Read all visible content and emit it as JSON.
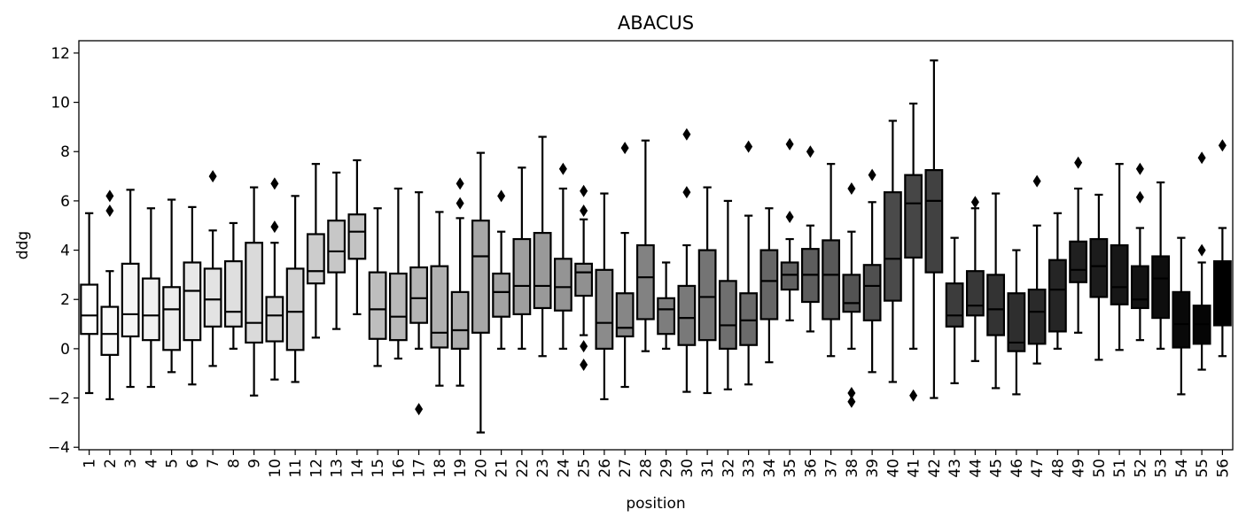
{
  "chart_data": {
    "type": "box",
    "title": "ABACUS",
    "xlabel": "position",
    "ylabel": "ddg",
    "ylim": [
      -4.1,
      12.5
    ],
    "yticks": [
      -4,
      -2,
      0,
      2,
      4,
      6,
      8,
      10,
      12
    ],
    "ytick_labels": [
      "−4",
      "−2",
      "0",
      "2",
      "4",
      "6",
      "8",
      "10",
      "12"
    ],
    "categories": [
      "1",
      "2",
      "3",
      "4",
      "5",
      "6",
      "7",
      "8",
      "9",
      "10",
      "11",
      "12",
      "13",
      "14",
      "15",
      "16",
      "17",
      "18",
      "19",
      "20",
      "21",
      "22",
      "23",
      "24",
      "25",
      "26",
      "27",
      "28",
      "29",
      "30",
      "31",
      "32",
      "33",
      "34",
      "35",
      "36",
      "37",
      "38",
      "39",
      "40",
      "41",
      "42",
      "43",
      "44",
      "45",
      "46",
      "47",
      "48",
      "49",
      "50",
      "51",
      "52",
      "53",
      "54",
      "55",
      "56"
    ],
    "boxes": [
      {
        "wl": -1.8,
        "q1": 0.6,
        "med": 1.35,
        "q3": 2.6,
        "wh": 5.5,
        "out": []
      },
      {
        "wl": -2.05,
        "q1": -0.25,
        "med": 0.6,
        "q3": 1.7,
        "wh": 3.15,
        "out": [
          6.2,
          5.6
        ]
      },
      {
        "wl": -1.55,
        "q1": 0.5,
        "med": 1.4,
        "q3": 3.45,
        "wh": 6.45,
        "out": []
      },
      {
        "wl": -1.55,
        "q1": 0.35,
        "med": 1.35,
        "q3": 2.85,
        "wh": 5.7,
        "out": []
      },
      {
        "wl": -0.95,
        "q1": -0.05,
        "med": 1.6,
        "q3": 2.5,
        "wh": 6.05,
        "out": []
      },
      {
        "wl": -1.45,
        "q1": 0.35,
        "med": 2.35,
        "q3": 3.5,
        "wh": 5.75,
        "out": []
      },
      {
        "wl": -0.7,
        "q1": 0.9,
        "med": 2.0,
        "q3": 3.25,
        "wh": 4.8,
        "out": [
          7.0
        ]
      },
      {
        "wl": 0.0,
        "q1": 0.9,
        "med": 1.5,
        "q3": 3.55,
        "wh": 5.1,
        "out": []
      },
      {
        "wl": -1.9,
        "q1": 0.25,
        "med": 1.05,
        "q3": 4.3,
        "wh": 6.55,
        "out": []
      },
      {
        "wl": -1.25,
        "q1": 0.3,
        "med": 1.35,
        "q3": 2.1,
        "wh": 4.3,
        "out": [
          6.7,
          4.95
        ]
      },
      {
        "wl": -1.35,
        "q1": -0.05,
        "med": 1.5,
        "q3": 3.25,
        "wh": 6.2,
        "out": []
      },
      {
        "wl": 0.45,
        "q1": 2.65,
        "med": 3.15,
        "q3": 4.65,
        "wh": 7.5,
        "out": []
      },
      {
        "wl": 0.8,
        "q1": 3.1,
        "med": 3.95,
        "q3": 5.2,
        "wh": 7.15,
        "out": []
      },
      {
        "wl": 1.4,
        "q1": 3.65,
        "med": 4.75,
        "q3": 5.45,
        "wh": 7.65,
        "out": []
      },
      {
        "wl": -0.7,
        "q1": 0.4,
        "med": 1.6,
        "q3": 3.1,
        "wh": 5.7,
        "out": []
      },
      {
        "wl": -0.4,
        "q1": 0.35,
        "med": 1.3,
        "q3": 3.05,
        "wh": 6.5,
        "out": []
      },
      {
        "wl": 0.0,
        "q1": 1.05,
        "med": 2.05,
        "q3": 3.3,
        "wh": 6.35,
        "out": [
          -2.45
        ]
      },
      {
        "wl": -1.5,
        "q1": 0.05,
        "med": 0.65,
        "q3": 3.35,
        "wh": 5.55,
        "out": []
      },
      {
        "wl": -1.5,
        "q1": 0.0,
        "med": 0.75,
        "q3": 2.3,
        "wh": 5.3,
        "out": [
          6.7,
          5.9
        ]
      },
      {
        "wl": -3.4,
        "q1": 0.65,
        "med": 3.75,
        "q3": 5.2,
        "wh": 7.95,
        "out": []
      },
      {
        "wl": 0.0,
        "q1": 1.3,
        "med": 2.3,
        "q3": 3.05,
        "wh": 4.75,
        "out": [
          6.2
        ]
      },
      {
        "wl": 0.0,
        "q1": 1.4,
        "med": 2.55,
        "q3": 4.45,
        "wh": 7.35,
        "out": []
      },
      {
        "wl": -0.3,
        "q1": 1.65,
        "med": 2.55,
        "q3": 4.7,
        "wh": 8.6,
        "out": []
      },
      {
        "wl": 0.0,
        "q1": 1.55,
        "med": 2.5,
        "q3": 3.65,
        "wh": 6.5,
        "out": [
          7.3
        ]
      },
      {
        "wl": 0.55,
        "q1": 2.15,
        "med": 3.1,
        "q3": 3.45,
        "wh": 5.25,
        "out": [
          6.4,
          5.6,
          0.1,
          -0.65
        ]
      },
      {
        "wl": -2.05,
        "q1": 0.0,
        "med": 1.05,
        "q3": 3.2,
        "wh": 6.3,
        "out": []
      },
      {
        "wl": -1.55,
        "q1": 0.5,
        "med": 0.85,
        "q3": 2.25,
        "wh": 4.7,
        "out": [
          8.15
        ]
      },
      {
        "wl": -0.1,
        "q1": 1.2,
        "med": 2.9,
        "q3": 4.2,
        "wh": 8.45,
        "out": []
      },
      {
        "wl": 0.0,
        "q1": 0.6,
        "med": 1.6,
        "q3": 2.05,
        "wh": 3.5,
        "out": []
      },
      {
        "wl": -1.75,
        "q1": 0.15,
        "med": 1.25,
        "q3": 2.55,
        "wh": 4.2,
        "out": [
          8.7,
          6.35
        ]
      },
      {
        "wl": -1.8,
        "q1": 0.35,
        "med": 2.1,
        "q3": 4.0,
        "wh": 6.55,
        "out": []
      },
      {
        "wl": -1.65,
        "q1": 0.0,
        "med": 0.95,
        "q3": 2.75,
        "wh": 6.0,
        "out": []
      },
      {
        "wl": -1.45,
        "q1": 0.15,
        "med": 1.15,
        "q3": 2.25,
        "wh": 5.4,
        "out": [
          8.2
        ]
      },
      {
        "wl": -0.55,
        "q1": 1.2,
        "med": 2.75,
        "q3": 4.0,
        "wh": 5.7,
        "out": []
      },
      {
        "wl": 1.15,
        "q1": 2.4,
        "med": 3.0,
        "q3": 3.5,
        "wh": 4.45,
        "out": [
          8.3,
          5.35
        ]
      },
      {
        "wl": 0.7,
        "q1": 1.9,
        "med": 3.0,
        "q3": 4.05,
        "wh": 5.0,
        "out": [
          8.0
        ]
      },
      {
        "wl": -0.3,
        "q1": 1.2,
        "med": 3.0,
        "q3": 4.4,
        "wh": 7.5,
        "out": []
      },
      {
        "wl": 0.0,
        "q1": 1.5,
        "med": 1.85,
        "q3": 3.0,
        "wh": 4.75,
        "out": [
          6.5,
          -1.8,
          -2.15
        ]
      },
      {
        "wl": -0.95,
        "q1": 1.15,
        "med": 2.55,
        "q3": 3.4,
        "wh": 5.95,
        "out": [
          7.05
        ]
      },
      {
        "wl": -1.35,
        "q1": 1.95,
        "med": 3.65,
        "q3": 6.35,
        "wh": 9.25,
        "out": []
      },
      {
        "wl": 0.0,
        "q1": 3.7,
        "med": 5.9,
        "q3": 7.05,
        "wh": 9.95,
        "out": [
          -1.9
        ]
      },
      {
        "wl": -2.0,
        "q1": 3.1,
        "med": 6.0,
        "q3": 7.25,
        "wh": 11.7,
        "out": []
      },
      {
        "wl": -1.4,
        "q1": 0.9,
        "med": 1.35,
        "q3": 2.65,
        "wh": 4.5,
        "out": []
      },
      {
        "wl": -0.5,
        "q1": 1.35,
        "med": 1.75,
        "q3": 3.15,
        "wh": 5.7,
        "out": [
          5.95
        ]
      },
      {
        "wl": -1.6,
        "q1": 0.55,
        "med": 1.6,
        "q3": 3.0,
        "wh": 6.3,
        "out": []
      },
      {
        "wl": -1.85,
        "q1": -0.1,
        "med": 0.25,
        "q3": 2.25,
        "wh": 4.0,
        "out": []
      },
      {
        "wl": -0.6,
        "q1": 0.2,
        "med": 1.5,
        "q3": 2.4,
        "wh": 5.0,
        "out": [
          6.8
        ]
      },
      {
        "wl": 0.0,
        "q1": 0.7,
        "med": 2.4,
        "q3": 3.6,
        "wh": 5.5,
        "out": []
      },
      {
        "wl": 0.65,
        "q1": 2.7,
        "med": 3.2,
        "q3": 4.35,
        "wh": 6.5,
        "out": [
          7.55
        ]
      },
      {
        "wl": -0.45,
        "q1": 2.1,
        "med": 3.35,
        "q3": 4.45,
        "wh": 6.25,
        "out": []
      },
      {
        "wl": -0.05,
        "q1": 1.8,
        "med": 2.5,
        "q3": 4.2,
        "wh": 7.5,
        "out": []
      },
      {
        "wl": 0.35,
        "q1": 1.65,
        "med": 2.0,
        "q3": 3.35,
        "wh": 4.9,
        "out": [
          7.3,
          6.15
        ]
      },
      {
        "wl": 0.0,
        "q1": 1.25,
        "med": 2.85,
        "q3": 3.75,
        "wh": 6.75,
        "out": []
      },
      {
        "wl": -1.85,
        "q1": 0.05,
        "med": 1.0,
        "q3": 2.3,
        "wh": 4.5,
        "out": []
      },
      {
        "wl": -0.85,
        "q1": 0.2,
        "med": 1.0,
        "q3": 1.75,
        "wh": 3.5,
        "out": [
          7.75,
          4.0
        ]
      },
      {
        "wl": -0.3,
        "q1": 0.95,
        "med": 1.95,
        "q3": 3.55,
        "wh": 4.9,
        "out": [
          8.25
        ]
      }
    ],
    "legend": "none",
    "grid": false
  }
}
